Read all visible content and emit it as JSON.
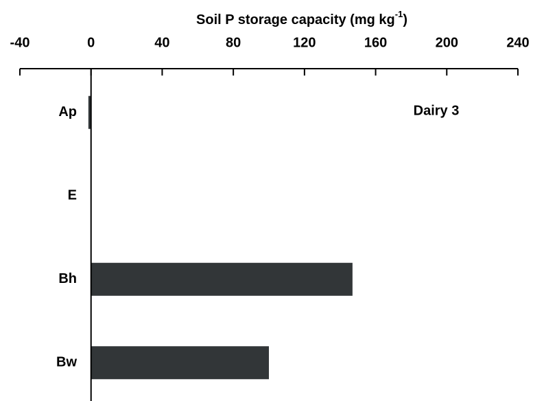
{
  "chart_data": {
    "type": "hbar",
    "xlabel": {
      "text": "Soil P storage capacity (mg kg",
      "superscript": "-1",
      "suffix": ")"
    },
    "annotation": "Dairy 3",
    "categories": [
      "Ap",
      "E",
      "Bh",
      "Bw"
    ],
    "values": [
      -1.5,
      0,
      147,
      100
    ],
    "color": "#323638",
    "xlim": [
      -40,
      240
    ],
    "xticks": [
      -40,
      0,
      40,
      80,
      120,
      160,
      200,
      240
    ]
  }
}
